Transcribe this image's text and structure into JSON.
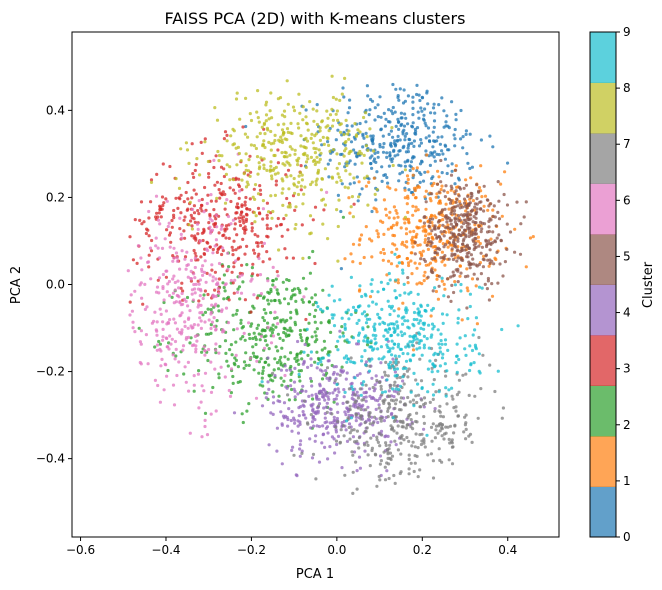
{
  "chart_data": {
    "type": "scatter",
    "title": "FAISS PCA (2D) with K-means clusters",
    "xlabel": "PCA 1",
    "ylabel": "PCA 2",
    "xlim": [
      -0.62,
      0.52
    ],
    "ylim": [
      -0.58,
      0.58
    ],
    "xticks": [
      -0.6,
      -0.4,
      -0.2,
      0.0,
      0.2,
      0.4
    ],
    "xtick_labels": [
      "−0.6",
      "−0.4",
      "−0.2",
      "0.0",
      "0.2",
      "0.4"
    ],
    "yticks": [
      -0.4,
      -0.2,
      0.0,
      0.2,
      0.4
    ],
    "ytick_labels": [
      "−0.4",
      "−0.2",
      "0.0",
      "0.2",
      "0.4"
    ],
    "grid": false,
    "colorbar": {
      "label": "Cluster",
      "range": [
        0,
        9
      ],
      "ticks": [
        0,
        1,
        2,
        3,
        4,
        5,
        6,
        7,
        8,
        9
      ],
      "tick_labels": [
        "0",
        "1",
        "2",
        "3",
        "4",
        "5",
        "6",
        "7",
        "8",
        "9"
      ],
      "colors": [
        "#1f77b4",
        "#ff7f0e",
        "#2ca02c",
        "#d62728",
        "#9467bd",
        "#8c564b",
        "#e377c2",
        "#7f7f7f",
        "#bcbd22",
        "#17becf"
      ]
    },
    "series": [
      {
        "cluster": 0,
        "color": "#1f77b4",
        "center": [
          0.15,
          0.33
        ],
        "spread": [
          0.09,
          0.07
        ]
      },
      {
        "cluster": 1,
        "color": "#ff7f0e",
        "center": [
          0.22,
          0.12
        ],
        "spread": [
          0.08,
          0.07
        ]
      },
      {
        "cluster": 2,
        "color": "#2ca02c",
        "center": [
          -0.15,
          -0.12
        ],
        "spread": [
          0.1,
          0.08
        ]
      },
      {
        "cluster": 3,
        "color": "#d62728",
        "center": [
          -0.28,
          0.15
        ],
        "spread": [
          0.1,
          0.08
        ]
      },
      {
        "cluster": 4,
        "color": "#9467bd",
        "center": [
          0.0,
          -0.28
        ],
        "spread": [
          0.08,
          0.06
        ]
      },
      {
        "cluster": 5,
        "color": "#8c564b",
        "center": [
          0.3,
          0.12
        ],
        "spread": [
          0.05,
          0.06
        ]
      },
      {
        "cluster": 6,
        "color": "#e377c2",
        "center": [
          -0.35,
          -0.05
        ],
        "spread": [
          0.09,
          0.12
        ]
      },
      {
        "cluster": 7,
        "color": "#7f7f7f",
        "center": [
          0.15,
          -0.32
        ],
        "spread": [
          0.1,
          0.07
        ]
      },
      {
        "cluster": 8,
        "color": "#bcbd22",
        "center": [
          -0.1,
          0.3
        ],
        "spread": [
          0.1,
          0.07
        ]
      },
      {
        "cluster": 9,
        "color": "#17becf",
        "center": [
          0.15,
          -0.12
        ],
        "spread": [
          0.09,
          0.07
        ]
      }
    ]
  }
}
